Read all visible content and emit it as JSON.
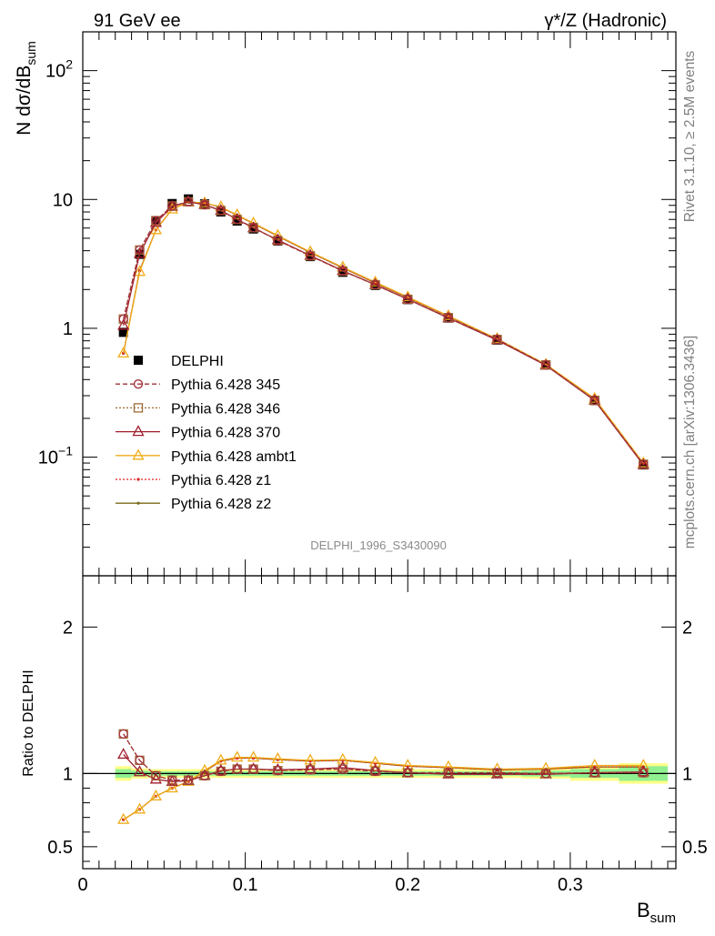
{
  "header": {
    "left": "91 GeV ee",
    "right": "γ*/Z (Hadronic)"
  },
  "side_labels": {
    "rivet": "Rivet 3.1.10, ≥ 2.5M events",
    "mcplots": "mcplots.cern.ch [arXiv:1306.3436]"
  },
  "watermark": "DELPHI_1996_S3430090",
  "chart_data": [
    {
      "type": "line",
      "panel": "main",
      "ylabel": "N dσ/dB_sum",
      "yscale": "log",
      "ylim": [
        0.012,
        200
      ],
      "xlim": [
        0,
        0.365
      ],
      "y_tick_labels": [
        "10^-1",
        "1",
        "10",
        "10^2"
      ],
      "x": [
        0.025,
        0.035,
        0.045,
        0.055,
        0.065,
        0.075,
        0.085,
        0.095,
        0.105,
        0.12,
        0.14,
        0.16,
        0.18,
        0.2,
        0.225,
        0.255,
        0.285,
        0.315,
        0.345
      ],
      "series": [
        {
          "name": "DELPHI",
          "color": "#000000",
          "style": "data",
          "marker": "filled-square",
          "values": [
            0.93,
            3.75,
            6.85,
            9.3,
            10.1,
            9.25,
            8.0,
            6.8,
            5.9,
            4.75,
            3.6,
            2.72,
            2.15,
            1.67,
            1.2,
            0.81,
            0.52,
            0.275,
            0.087
          ]
        },
        {
          "name": "Pythia 6.428 345",
          "color": "#a0303a",
          "style": "dashed",
          "marker": "open-circle",
          "values": [
            1.18,
            4.05,
            6.85,
            8.9,
            9.6,
            9.1,
            8.2,
            7.0,
            6.05,
            4.8,
            3.65,
            2.78,
            2.18,
            1.68,
            1.21,
            0.82,
            0.52,
            0.276,
            0.088
          ]
        },
        {
          "name": "Pythia 6.428 346",
          "color": "#a06a35",
          "style": "dotted",
          "marker": "open-square",
          "values": [
            1.18,
            4.05,
            6.85,
            8.9,
            9.6,
            9.1,
            8.2,
            7.0,
            6.05,
            4.8,
            3.65,
            2.78,
            2.18,
            1.68,
            1.21,
            0.82,
            0.52,
            0.276,
            0.088
          ]
        },
        {
          "name": "Pythia 6.428 370",
          "color": "#a01c2c",
          "style": "solid",
          "marker": "open-triangle",
          "values": [
            1.05,
            3.8,
            6.6,
            8.8,
            9.6,
            9.1,
            8.2,
            7.0,
            6.0,
            4.85,
            3.67,
            2.8,
            2.18,
            1.68,
            1.2,
            0.81,
            0.515,
            0.275,
            0.087
          ]
        },
        {
          "name": "Pythia 6.428 ambt1",
          "color": "#f0ac1a",
          "style": "solid",
          "marker": "open-triangle",
          "values": [
            0.64,
            2.75,
            5.8,
            8.4,
            9.55,
            9.4,
            8.75,
            7.6,
            6.55,
            5.25,
            3.92,
            2.98,
            2.28,
            1.75,
            1.25,
            0.83,
            0.525,
            0.285,
            0.09
          ]
        },
        {
          "name": "Pythia 6.428 z1",
          "color": "#e02020",
          "style": "dotted",
          "marker": "dot",
          "values": [
            0.64,
            2.8,
            5.8,
            8.4,
            9.55,
            9.4,
            8.7,
            7.55,
            6.5,
            5.2,
            3.88,
            2.95,
            2.25,
            1.73,
            1.24,
            0.825,
            0.522,
            0.283,
            0.089
          ]
        },
        {
          "name": "Pythia 6.428 z2",
          "color": "#7a6a1a",
          "style": "solid",
          "marker": "dot",
          "values": [
            0.64,
            2.8,
            5.8,
            8.4,
            9.55,
            9.4,
            8.7,
            7.55,
            6.5,
            5.2,
            3.88,
            2.95,
            2.25,
            1.73,
            1.24,
            0.825,
            0.522,
            0.283,
            0.089
          ]
        }
      ],
      "legend_position": "middle-left"
    },
    {
      "type": "line",
      "panel": "ratio",
      "ylabel": "Ratio to DELPHI",
      "xlabel": "B_sum",
      "ylim": [
        0.35,
        2.35
      ],
      "xlim": [
        0,
        0.365
      ],
      "x_tick_labels": [
        "0",
        "0.1",
        "0.2",
        "0.3"
      ],
      "y_tick_labels": [
        "0.5",
        "1",
        "2"
      ],
      "x": [
        0.025,
        0.035,
        0.045,
        0.055,
        0.065,
        0.075,
        0.085,
        0.095,
        0.105,
        0.12,
        0.14,
        0.16,
        0.18,
        0.2,
        0.225,
        0.255,
        0.285,
        0.315,
        0.345
      ],
      "uncertainty_band": {
        "inner_color": "#90f090",
        "outer_color": "#ffff88",
        "x_edges": [
          0.02,
          0.03,
          0.04,
          0.05,
          0.06,
          0.07,
          0.08,
          0.09,
          0.1,
          0.11,
          0.13,
          0.15,
          0.17,
          0.19,
          0.21,
          0.24,
          0.27,
          0.3,
          0.33,
          0.36
        ],
        "inner_halfwidth": [
          0.03,
          0.02,
          0.015,
          0.015,
          0.015,
          0.015,
          0.015,
          0.015,
          0.015,
          0.015,
          0.015,
          0.015,
          0.015,
          0.015,
          0.015,
          0.015,
          0.02,
          0.03,
          0.05
        ],
        "outer_halfwidth": [
          0.05,
          0.035,
          0.03,
          0.03,
          0.03,
          0.03,
          0.03,
          0.03,
          0.03,
          0.03,
          0.03,
          0.03,
          0.03,
          0.03,
          0.03,
          0.03,
          0.035,
          0.05,
          0.07
        ]
      },
      "series": [
        {
          "name": "Pythia 6.428 345",
          "values": [
            1.27,
            1.09,
            0.985,
            0.955,
            0.955,
            0.985,
            1.015,
            1.03,
            1.03,
            1.02,
            1.025,
            1.03,
            1.015,
            1.005,
            1.005,
            1.005,
            1.0,
            1.005,
            1.005
          ]
        },
        {
          "name": "Pythia 6.428 346",
          "values": [
            1.27,
            1.09,
            0.985,
            0.955,
            0.955,
            0.985,
            1.015,
            1.03,
            1.03,
            1.02,
            1.025,
            1.03,
            1.015,
            1.005,
            1.005,
            1.005,
            1.0,
            1.005,
            1.005
          ]
        },
        {
          "name": "Pythia 6.428 370",
          "values": [
            1.13,
            1.01,
            0.96,
            0.945,
            0.95,
            0.985,
            1.02,
            1.03,
            1.03,
            1.025,
            1.03,
            1.04,
            1.02,
            1.005,
            0.995,
            0.995,
            0.995,
            1.005,
            1.01
          ]
        },
        {
          "name": "Pythia 6.428 ambt1",
          "values": [
            0.685,
            0.755,
            0.845,
            0.9,
            0.945,
            1.02,
            1.09,
            1.11,
            1.11,
            1.1,
            1.09,
            1.095,
            1.075,
            1.055,
            1.045,
            1.03,
            1.035,
            1.055,
            1.055
          ]
        },
        {
          "name": "Pythia 6.428 z1",
          "values": [
            0.685,
            0.755,
            0.845,
            0.9,
            0.945,
            1.015,
            1.085,
            1.105,
            1.105,
            1.095,
            1.085,
            1.09,
            1.07,
            1.05,
            1.04,
            1.025,
            1.03,
            1.045,
            1.045
          ]
        },
        {
          "name": "Pythia 6.428 z2",
          "values": [
            0.685,
            0.755,
            0.845,
            0.9,
            0.945,
            1.015,
            1.085,
            1.105,
            1.105,
            1.095,
            1.085,
            1.09,
            1.07,
            1.05,
            1.04,
            1.025,
            1.03,
            1.045,
            1.045
          ]
        }
      ]
    }
  ]
}
